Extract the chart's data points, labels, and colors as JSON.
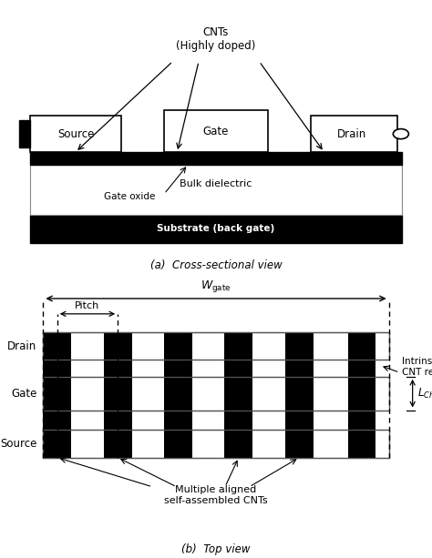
{
  "bg_color": "#ffffff",
  "black": "#000000",
  "white": "#ffffff",
  "title_a": "(a)  Cross-sectional view",
  "title_b": "(b)  Top view",
  "cnt_label": "CNTs\n(Highly doped)",
  "gate_oxide_label": "Gate oxide",
  "bulk_dielectric_label": "Bulk dielectric",
  "substrate_label": "Substrate (back gate)",
  "source_label": "Source",
  "drain_label": "Drain",
  "gate_label": "Gate",
  "drain_top_label": "Drain",
  "gate_top_label": "Gate",
  "source_top_label": "Source",
  "intrinsic_label": "Intrinsic\nCNT region",
  "pitch_label": "Pitch",
  "multi_cnt_label": "Multiple aligned\nself-assembled CNTs"
}
